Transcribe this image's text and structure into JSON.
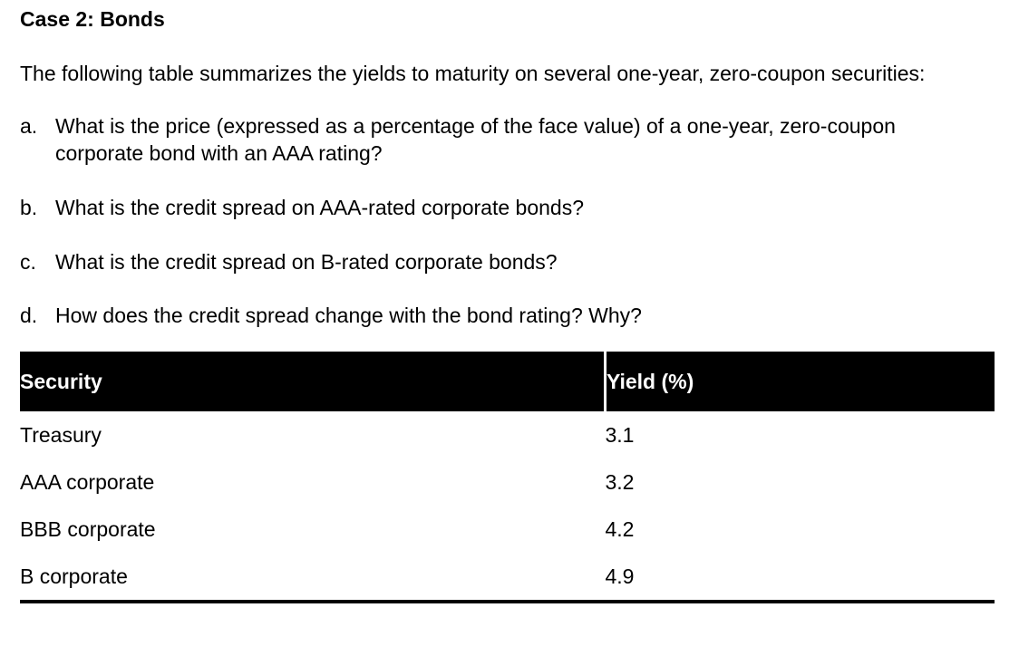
{
  "document": {
    "title": "Case 2: Bonds",
    "intro": "The following table summarizes the yields to maturity on several one-year, zero-coupon securities:",
    "questions": [
      {
        "label": "a.",
        "text": "What is the price (expressed as a percentage of the face value) of a one-year, zero-coupon corporate bond with an AAA rating?"
      },
      {
        "label": "b.",
        "text": "What is the credit spread on AAA-rated corporate bonds?"
      },
      {
        "label": "c.",
        "text": "What is the credit spread on B-rated corporate bonds?"
      },
      {
        "label": "d.",
        "text": "How does the credit spread change with the bond rating? Why?"
      }
    ]
  },
  "table": {
    "headers": [
      "Security",
      "Yield (%)"
    ],
    "rows": [
      {
        "security": "Treasury",
        "yield": "3.1"
      },
      {
        "security": "AAA corporate",
        "yield": "3.2"
      },
      {
        "security": "BBB corporate",
        "yield": "4.2"
      },
      {
        "security": "B corporate",
        "yield": "4.9"
      }
    ]
  },
  "colors": {
    "background": "#ffffff",
    "body_text": "#000000",
    "table_header_bg": "#000000",
    "table_header_text": "#ffffff",
    "table_bottom_rule": "#000000"
  }
}
